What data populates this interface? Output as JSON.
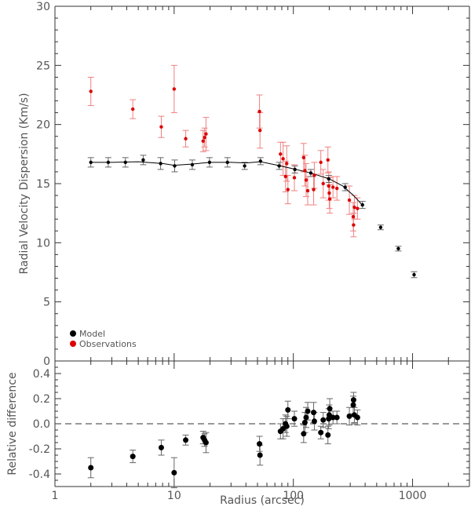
{
  "chart_data": {
    "type": "scatter",
    "x_scale": "log",
    "xlabel": "Radius (arcsec)",
    "xlim": [
      1,
      3000
    ],
    "x_ticks": [
      1,
      10,
      100,
      1000
    ],
    "x_tick_labels": [
      "1",
      "10",
      "100",
      "1000"
    ],
    "colors": {
      "model": "#000000",
      "observations": "#dd0000",
      "obs_error": "#f08080",
      "model_error": "#666666",
      "zero_line": "#777777"
    },
    "panels": [
      {
        "name": "dispersion",
        "ylabel": "Radial Velocity Dispersion (Km/s)",
        "ylim": [
          0,
          30
        ],
        "y_ticks": [
          0,
          5,
          10,
          15,
          20,
          25,
          30
        ],
        "y_tick_labels": [
          "0",
          "5",
          "10",
          "15",
          "20",
          "25",
          "30"
        ],
        "legend": {
          "position": "bottom-left",
          "entries": [
            {
              "label": "Model",
              "color": "#000000"
            },
            {
              "label": "Observations",
              "color": "#dd0000"
            }
          ]
        },
        "series": [
          {
            "name": "Model",
            "marker": "dot",
            "points": [
              {
                "x": 2.0,
                "y": 16.8,
                "err": 0.4
              },
              {
                "x": 2.8,
                "y": 16.8,
                "err": 0.4
              },
              {
                "x": 3.9,
                "y": 16.8,
                "err": 0.4
              },
              {
                "x": 5.5,
                "y": 17.0,
                "err": 0.4
              },
              {
                "x": 7.7,
                "y": 16.7,
                "err": 0.5
              },
              {
                "x": 10.1,
                "y": 16.5,
                "err": 0.5
              },
              {
                "x": 14.2,
                "y": 16.6,
                "err": 0.4
              },
              {
                "x": 19.8,
                "y": 16.8,
                "err": 0.4
              },
              {
                "x": 28.0,
                "y": 16.8,
                "err": 0.4
              },
              {
                "x": 39.0,
                "y": 16.5,
                "err": 0.3
              },
              {
                "x": 53.0,
                "y": 16.9,
                "err": 0.3
              },
              {
                "x": 76.0,
                "y": 16.5,
                "err": 0.3
              },
              {
                "x": 103.0,
                "y": 16.2,
                "err": 0.3
              },
              {
                "x": 140.0,
                "y": 15.9,
                "err": 0.3
              },
              {
                "x": 198.0,
                "y": 15.4,
                "err": 0.3
              },
              {
                "x": 272.0,
                "y": 14.7,
                "err": 0.3
              },
              {
                "x": 380.0,
                "y": 13.2,
                "err": 0.3
              },
              {
                "x": 540.0,
                "y": 11.3,
                "err": 0.2
              },
              {
                "x": 760.0,
                "y": 9.5,
                "err": 0.2
              },
              {
                "x": 1030.0,
                "y": 7.3,
                "err": 0.25
              }
            ]
          },
          {
            "name": "Model curve",
            "marker": "line",
            "points": [
              {
                "x": 2.0,
                "y": 16.8
              },
              {
                "x": 3.0,
                "y": 16.8
              },
              {
                "x": 5.0,
                "y": 16.85
              },
              {
                "x": 8.0,
                "y": 16.7
              },
              {
                "x": 10.0,
                "y": 16.55
              },
              {
                "x": 14.0,
                "y": 16.65
              },
              {
                "x": 20.0,
                "y": 16.8
              },
              {
                "x": 30.0,
                "y": 16.8
              },
              {
                "x": 40.0,
                "y": 16.75
              },
              {
                "x": 53.0,
                "y": 16.85
              },
              {
                "x": 70.0,
                "y": 16.6
              },
              {
                "x": 100.0,
                "y": 16.25
              },
              {
                "x": 140.0,
                "y": 15.9
              },
              {
                "x": 200.0,
                "y": 15.4
              },
              {
                "x": 260.0,
                "y": 14.8
              },
              {
                "x": 320.0,
                "y": 14.0
              },
              {
                "x": 370.0,
                "y": 13.3
              }
            ]
          },
          {
            "name": "Observations",
            "marker": "dot",
            "points": [
              {
                "x": 2.0,
                "y": 22.8,
                "err": 1.2
              },
              {
                "x": 4.5,
                "y": 21.3,
                "err": 0.8
              },
              {
                "x": 7.8,
                "y": 19.8,
                "err": 0.9
              },
              {
                "x": 10.0,
                "y": 23.0,
                "err": 2.0
              },
              {
                "x": 12.5,
                "y": 18.8,
                "err": 0.7
              },
              {
                "x": 17.5,
                "y": 18.6,
                "err": 0.9
              },
              {
                "x": 18.0,
                "y": 18.9,
                "err": 0.8
              },
              {
                "x": 18.5,
                "y": 19.2,
                "err": 1.4
              },
              {
                "x": 52.0,
                "y": 21.1,
                "err": 1.4
              },
              {
                "x": 52.5,
                "y": 19.5,
                "err": 1.5
              },
              {
                "x": 78.0,
                "y": 17.5,
                "err": 1.0
              },
              {
                "x": 82.0,
                "y": 17.1,
                "err": 1.4
              },
              {
                "x": 86.0,
                "y": 15.6,
                "err": 1.3
              },
              {
                "x": 88.0,
                "y": 16.7,
                "err": 1.5
              },
              {
                "x": 90.0,
                "y": 14.5,
                "err": 1.2
              },
              {
                "x": 102.0,
                "y": 15.5,
                "err": 1.1
              },
              {
                "x": 122.0,
                "y": 17.2,
                "err": 1.2
              },
              {
                "x": 125.0,
                "y": 16.1,
                "err": 1.3
              },
              {
                "x": 128.0,
                "y": 15.3,
                "err": 1.4
              },
              {
                "x": 132.0,
                "y": 14.4,
                "err": 1.2
              },
              {
                "x": 148.0,
                "y": 14.5,
                "err": 1.3
              },
              {
                "x": 150.0,
                "y": 15.7,
                "err": 1.1
              },
              {
                "x": 170.0,
                "y": 16.8,
                "err": 1.0
              },
              {
                "x": 178.0,
                "y": 15.0,
                "err": 1.2
              },
              {
                "x": 195.0,
                "y": 17.0,
                "err": 1.1
              },
              {
                "x": 198.0,
                "y": 14.8,
                "err": 1.2
              },
              {
                "x": 200.0,
                "y": 14.2,
                "err": 1.3
              },
              {
                "x": 202.0,
                "y": 13.7,
                "err": 1.2
              },
              {
                "x": 215.0,
                "y": 14.7,
                "err": 0.9
              },
              {
                "x": 232.0,
                "y": 14.6,
                "err": 1.0
              },
              {
                "x": 295.0,
                "y": 13.6,
                "err": 1.2
              },
              {
                "x": 318.0,
                "y": 12.2,
                "err": 1.2
              },
              {
                "x": 320.0,
                "y": 11.5,
                "err": 1.0
              },
              {
                "x": 325.0,
                "y": 13.0,
                "err": 1.0
              },
              {
                "x": 345.0,
                "y": 12.9,
                "err": 0.9
              }
            ]
          }
        ]
      },
      {
        "name": "relative-difference",
        "ylabel": "Relative difference",
        "ylim": [
          -0.5,
          0.5
        ],
        "y_ticks": [
          -0.4,
          -0.2,
          0.0,
          0.2,
          0.4
        ],
        "y_tick_labels": [
          "-0.4",
          "-0.2",
          "0.0",
          "0.2",
          "0.4"
        ],
        "reference_line": 0.0,
        "series": [
          {
            "name": "Relative difference",
            "marker": "dot",
            "points": [
              {
                "x": 2.0,
                "y": -0.35,
                "err": 0.08
              },
              {
                "x": 4.5,
                "y": -0.26,
                "err": 0.05
              },
              {
                "x": 7.8,
                "y": -0.19,
                "err": 0.06
              },
              {
                "x": 10.0,
                "y": -0.39,
                "err": 0.12
              },
              {
                "x": 12.5,
                "y": -0.13,
                "err": 0.04
              },
              {
                "x": 17.5,
                "y": -0.11,
                "err": 0.05
              },
              {
                "x": 18.0,
                "y": -0.13,
                "err": 0.05
              },
              {
                "x": 18.5,
                "y": -0.15,
                "err": 0.08
              },
              {
                "x": 52.0,
                "y": -0.16,
                "err": 0.06
              },
              {
                "x": 52.5,
                "y": -0.25,
                "err": 0.08
              },
              {
                "x": 78.0,
                "y": -0.06,
                "err": 0.06
              },
              {
                "x": 82.0,
                "y": -0.04,
                "err": 0.08
              },
              {
                "x": 86.0,
                "y": 0.0,
                "err": 0.07
              },
              {
                "x": 88.0,
                "y": -0.02,
                "err": 0.08
              },
              {
                "x": 90.0,
                "y": 0.11,
                "err": 0.07
              },
              {
                "x": 102.0,
                "y": 0.04,
                "err": 0.06
              },
              {
                "x": 122.0,
                "y": -0.08,
                "err": 0.07
              },
              {
                "x": 125.0,
                "y": 0.01,
                "err": 0.08
              },
              {
                "x": 128.0,
                "y": 0.05,
                "err": 0.08
              },
              {
                "x": 132.0,
                "y": 0.1,
                "err": 0.07
              },
              {
                "x": 148.0,
                "y": 0.09,
                "err": 0.08
              },
              {
                "x": 150.0,
                "y": 0.02,
                "err": 0.07
              },
              {
                "x": 170.0,
                "y": -0.07,
                "err": 0.05
              },
              {
                "x": 178.0,
                "y": 0.03,
                "err": 0.06
              },
              {
                "x": 195.0,
                "y": -0.09,
                "err": 0.07
              },
              {
                "x": 198.0,
                "y": 0.04,
                "err": 0.08
              },
              {
                "x": 200.0,
                "y": 0.07,
                "err": 0.08
              },
              {
                "x": 202.0,
                "y": 0.12,
                "err": 0.08
              },
              {
                "x": 215.0,
                "y": 0.05,
                "err": 0.05
              },
              {
                "x": 232.0,
                "y": 0.05,
                "err": 0.05
              },
              {
                "x": 295.0,
                "y": 0.06,
                "err": 0.07
              },
              {
                "x": 318.0,
                "y": 0.15,
                "err": 0.07
              },
              {
                "x": 320.0,
                "y": 0.19,
                "err": 0.06
              },
              {
                "x": 325.0,
                "y": 0.07,
                "err": 0.06
              },
              {
                "x": 345.0,
                "y": 0.05,
                "err": 0.06
              }
            ]
          }
        ]
      }
    ]
  }
}
